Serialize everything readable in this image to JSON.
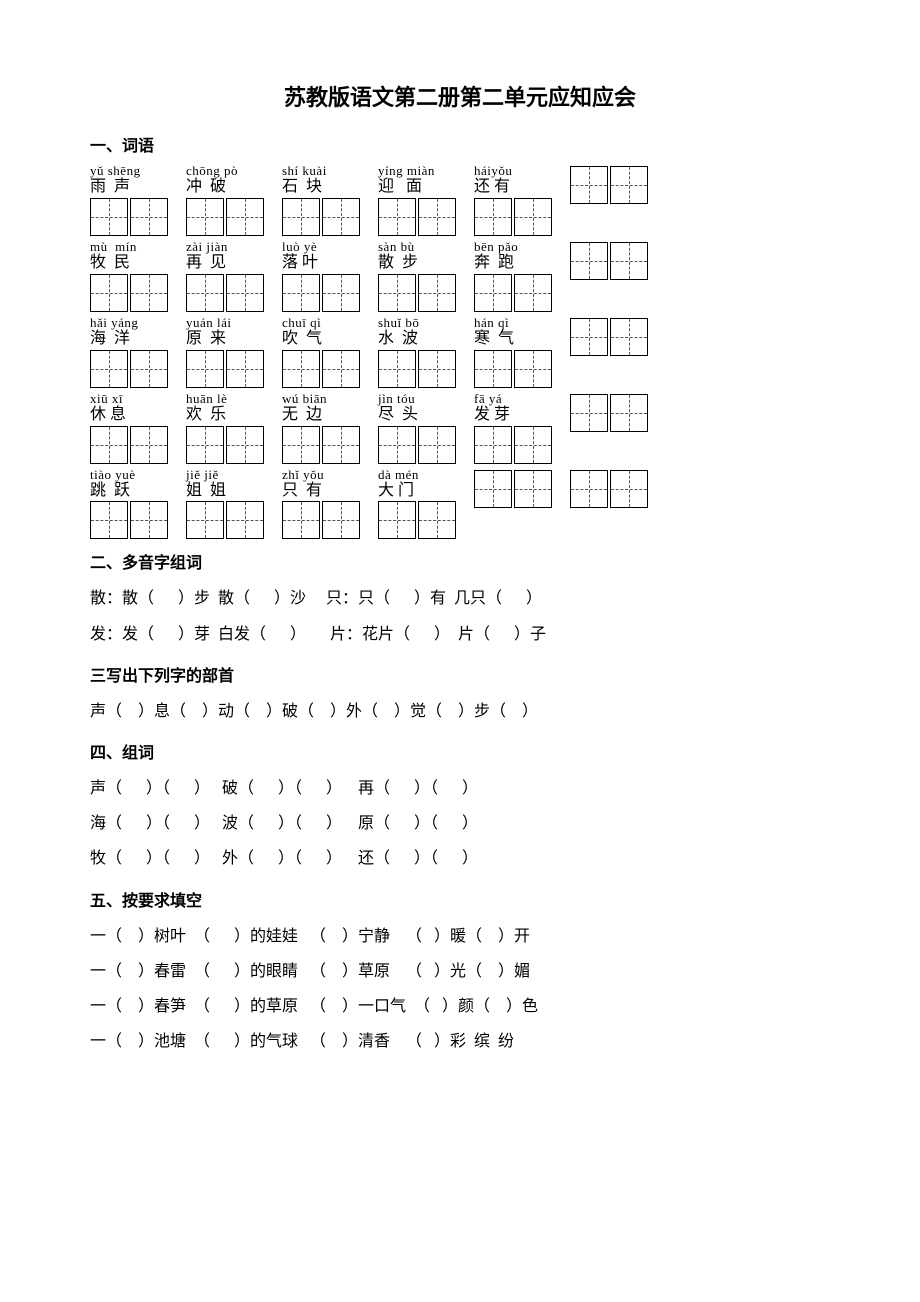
{
  "title": "苏教版语文第二册第二单元应知应会",
  "s1": {
    "header": "一、词语",
    "rows": [
      [
        {
          "p": "yǔ shēng",
          "h": "雨  声",
          "n": 2
        },
        {
          "p": "chōng pò",
          "h": "冲  破",
          "n": 2
        },
        {
          "p": "shí kuài",
          "h": "石  块",
          "n": 2
        },
        {
          "p": "yíng miàn",
          "h": "迎   面",
          "n": 2
        },
        {
          "p": "háiyǒu",
          "h": "还 有",
          "n": 2
        },
        {
          "p": "",
          "h": "",
          "n": 2
        }
      ],
      [
        {
          "p": "mù  mín",
          "h": "牧  民",
          "n": 2
        },
        {
          "p": "zài jiàn",
          "h": "再  见",
          "n": 2
        },
        {
          "p": "luò yè",
          "h": "落 叶",
          "n": 2
        },
        {
          "p": "sàn bù",
          "h": "散  步",
          "n": 2
        },
        {
          "p": "bēn pǎo",
          "h": "奔  跑",
          "n": 2
        },
        {
          "p": "",
          "h": "",
          "n": 2
        }
      ],
      [
        {
          "p": "hǎi yáng",
          "h": "海  洋",
          "n": 2
        },
        {
          "p": "yuán lái",
          "h": "原  来",
          "n": 2
        },
        {
          "p": "chuī qì",
          "h": "吹  气",
          "n": 2
        },
        {
          "p": "shuǐ bō",
          "h": "水  波",
          "n": 2
        },
        {
          "p": "hán qì",
          "h": "寒  气",
          "n": 2
        },
        {
          "p": "",
          "h": "",
          "n": 2
        }
      ],
      [
        {
          "p": "xiū xī",
          "h": "休 息",
          "n": 2
        },
        {
          "p": "huān lè",
          "h": "欢  乐",
          "n": 2
        },
        {
          "p": "wú biān",
          "h": "无  边",
          "n": 2
        },
        {
          "p": "jìn tóu",
          "h": "尽  头",
          "n": 2
        },
        {
          "p": "fā yá",
          "h": "发 芽",
          "n": 2
        },
        {
          "p": "",
          "h": "",
          "n": 2
        }
      ],
      [
        {
          "p": "tiào yuè",
          "h": "跳  跃",
          "n": 2
        },
        {
          "p": "jiě jiě",
          "h": "姐  姐",
          "n": 2
        },
        {
          "p": "zhǐ yǒu",
          "h": "只  有",
          "n": 2
        },
        {
          "p": "dà mén",
          "h": "大 门",
          "n": 2
        },
        {
          "p": "",
          "h": "",
          "n": 2
        },
        {
          "p": "",
          "h": "",
          "n": 2
        }
      ]
    ]
  },
  "s2": {
    "header": "二、多音字组词",
    "l1": "散：散（      ）步  散（      ）沙     只：只（      ）有  几只（      ）",
    "l2": "发：发（      ）芽  白发（      ）      片：花片（      ）  片（      ）子"
  },
  "s3": {
    "header": "三写出下列字的部首",
    "l1": "声（    ）息（    ）动（    ）破（    ）外（    ）觉（    ）步（    ）"
  },
  "s4": {
    "header": "四、组词",
    "l1": "声（      ）（      ）   破（      ）（      ）    再（      ）（      ）",
    "l2": "海（      ）（      ）   波（      ）（      ）    原（      ）（      ）",
    "l3": "牧（      ）（      ）   外（      ）（      ）    还（      ）（      ）"
  },
  "s5": {
    "header": "五、按要求填空",
    "l1": "一（    ）树叶  （      ）的娃娃   （    ）宁静    （   ）暖（    ）开",
    "l2": "一（    ）春雷  （      ）的眼睛   （    ）草原    （   ）光（    ）媚",
    "l3": "一（    ）春笋  （      ）的草原   （    ）一口气  （   ）颜（    ）色",
    "l4": "一（    ）池塘  （      ）的气球   （    ）清香    （   ）彩  缤  纷"
  }
}
